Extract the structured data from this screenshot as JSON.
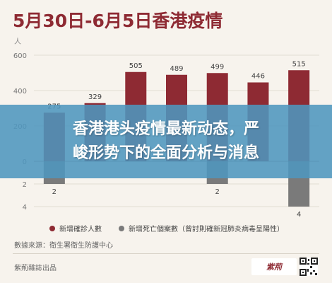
{
  "header": {
    "title": "5月30日-6月5日香港疫情",
    "unit": "人"
  },
  "banner": {
    "line1": "香港港头疫情最新动态，严",
    "line2": "峻形势下的全面分析与消息"
  },
  "chart_data": {
    "type": "bar",
    "title": "5月30日-6月5日香港疫情",
    "ylabel": "人",
    "y_ticks_positive": [
      0,
      200,
      400,
      600
    ],
    "y_ticks_negative": [
      2,
      4
    ],
    "ylim": [
      -4,
      600
    ],
    "series": [
      {
        "name": "新增確診人數",
        "color": "#8e2a33",
        "values": [
          275,
          329,
          505,
          489,
          499,
          446,
          515
        ]
      },
      {
        "name": "新增死亡個案數（曾討則確新冠肺炎病毒呈陽性）",
        "color": "#7a7a7a",
        "values": [
          2,
          0,
          0,
          0,
          2,
          0,
          4
        ]
      }
    ],
    "grid": "horizontal",
    "legend": "bottom"
  },
  "legend": {
    "item1": "新增確診人數",
    "item2": "新增死亡個案數（曾討則確新冠肺炎病毒呈陽性）"
  },
  "source": "數據來源：衛生署衛生防護中心",
  "footer": {
    "text": "紫荊雜誌出品",
    "logo_text": "紫荊"
  },
  "colors": {
    "confirmed": "#8e2a33",
    "deaths": "#7a7a7a",
    "banner": "#4f96be",
    "background": "#f7f3ed"
  }
}
